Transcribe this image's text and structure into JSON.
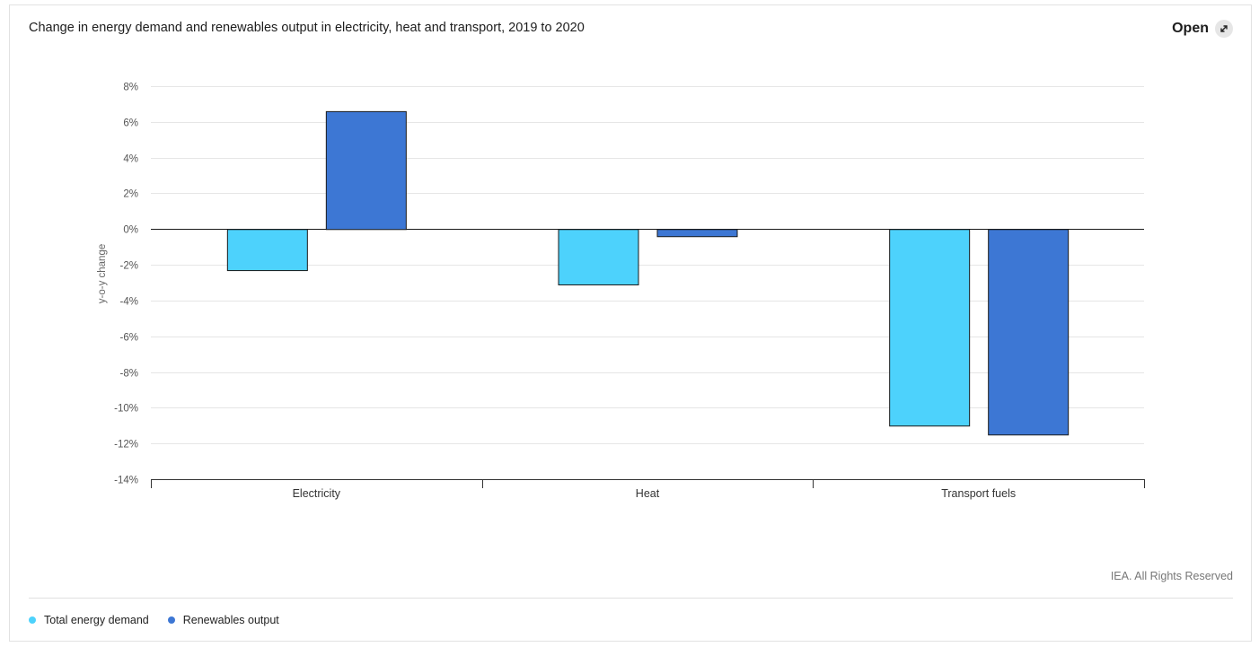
{
  "header": {
    "title": "Change in energy demand and renewables output in electricity, heat and transport, 2019 to 2020",
    "open_label": "Open",
    "open_icon": "expand-arrows-icon"
  },
  "footer": {
    "credit": "IEA. All Rights Reserved"
  },
  "legend": {
    "items": [
      {
        "label": "Total energy demand",
        "color": "#4dd2fc"
      },
      {
        "label": "Renewables output",
        "color": "#3d77d4"
      }
    ]
  },
  "chart_data": {
    "type": "bar",
    "title": "Change in energy demand and renewables output in electricity, heat and transport, 2019 to 2020",
    "xlabel": "",
    "ylabel": "y-o-y change",
    "categories": [
      "Electricity",
      "Heat",
      "Transport fuels"
    ],
    "series": [
      {
        "name": "Total energy demand",
        "color": "#4dd2fc",
        "values": [
          -2.3,
          -3.1,
          -11.0
        ]
      },
      {
        "name": "Renewables output",
        "color": "#3d77d4",
        "values": [
          6.6,
          -0.4,
          -11.5
        ]
      }
    ],
    "yticks": [
      "8%",
      "6%",
      "4%",
      "2%",
      "0%",
      "-2%",
      "-4%",
      "-6%",
      "-8%",
      "-10%",
      "-12%",
      "-14%"
    ],
    "ylim": [
      -14,
      8
    ],
    "grid": true,
    "legend_position": "bottom-left"
  }
}
